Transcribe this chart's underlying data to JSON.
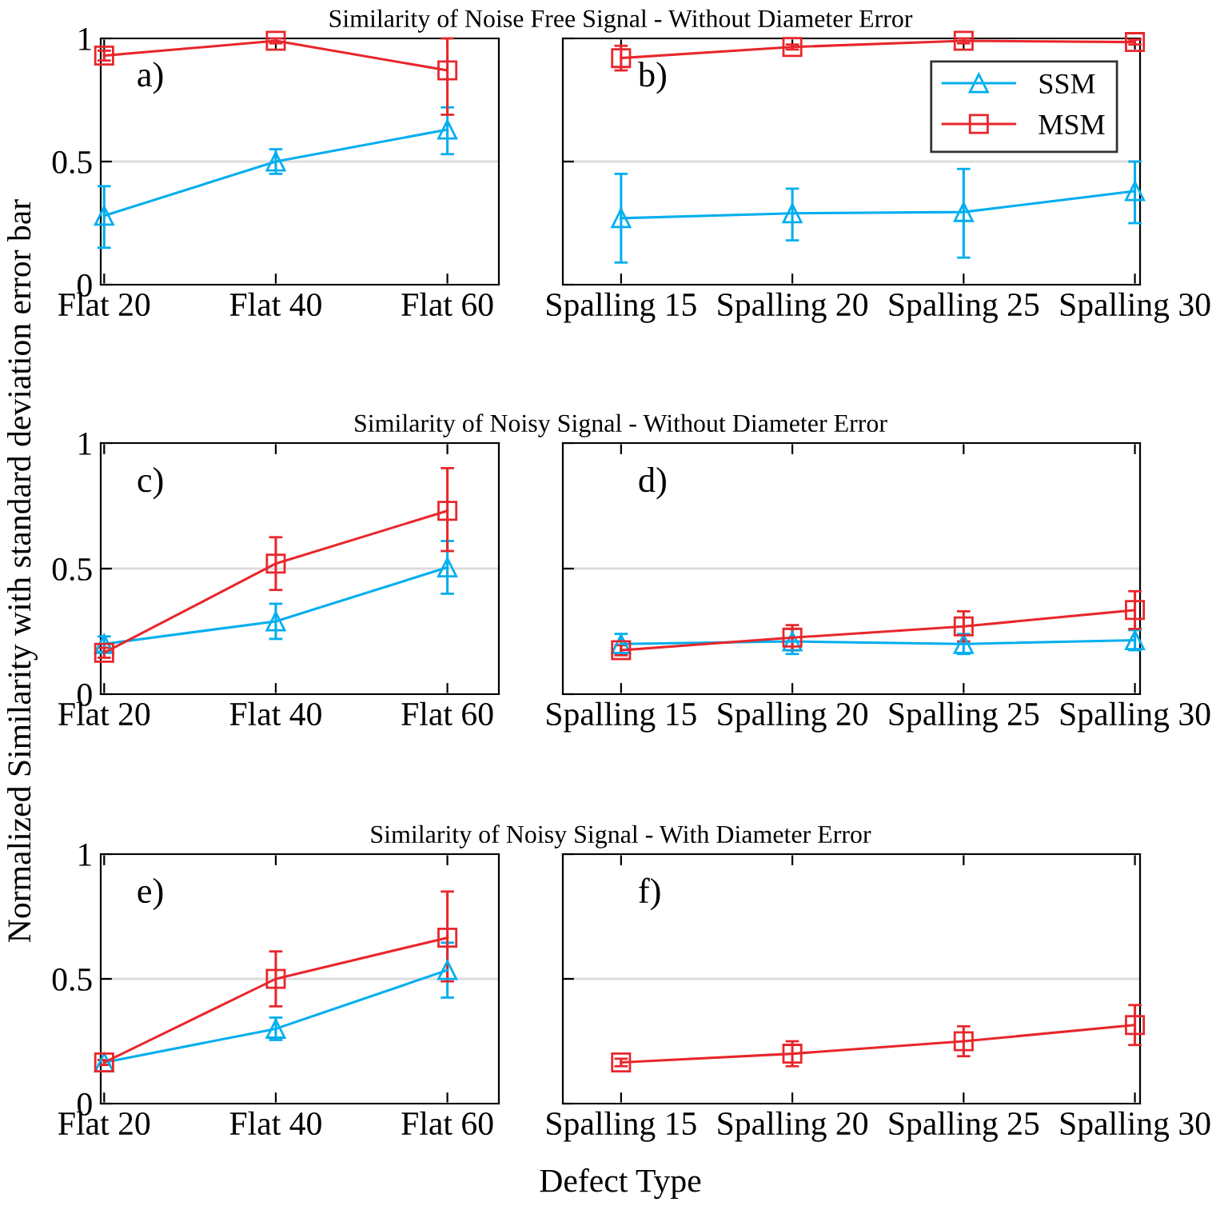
{
  "chart_data": [
    {
      "type": "line",
      "title": "Similarity of Noise Free Signal - Without Diameter Error",
      "annotations": [
        "a)"
      ],
      "categories": [
        "Flat 20",
        "Flat 40",
        "Flat 60"
      ],
      "ylim": [
        0,
        1
      ],
      "yticks": [
        0,
        0.5,
        1
      ],
      "grid": "y",
      "line_style": "solid",
      "series": [
        {
          "color": "#00aeef",
          "marker": "triangle",
          "values": [
            0.28,
            0.5,
            0.63
          ],
          "errors": [
            [
              0.15,
              0.4
            ],
            0.05,
            [
              0.53,
              0.72
            ]
          ]
        },
        {
          "color": "#e8262c",
          "marker": "square",
          "values": [
            0.93,
            0.99,
            0.87
          ],
          "errors": [
            0.02,
            0.01,
            [
              0.69,
              1.0
            ]
          ]
        }
      ]
    },
    {
      "type": "line",
      "annotations": [
        "b)"
      ],
      "categories": [
        "Spalling 15",
        "Spalling 20",
        "Spalling 25",
        "Spalling 30"
      ],
      "ylim": [
        0,
        1
      ],
      "yticks": [
        0,
        0.5,
        1
      ],
      "grid": "y",
      "tick_labels": "x",
      "legend": "top right",
      "line_style": "solid",
      "series": [
        {
          "name": "SSM",
          "color": "#00aeef",
          "marker": "triangle",
          "values": [
            0.27,
            0.29,
            0.295,
            0.38
          ],
          "errors": [
            [
              0.09,
              0.45
            ],
            [
              0.18,
              0.39
            ],
            [
              0.11,
              0.47
            ],
            [
              0.25,
              0.5
            ]
          ]
        },
        {
          "name": "MSM",
          "color": "#e8262c",
          "marker": "square",
          "values": [
            0.92,
            0.965,
            0.99,
            0.985
          ],
          "errors": [
            0.05,
            0.01,
            0.01,
            0.01
          ]
        }
      ]
    },
    {
      "type": "line",
      "title": "Similarity of Noisy Signal - Without Diameter Error",
      "ylabel": "Normalized Similarity with standard deviation error bar",
      "annotations": [
        "c)"
      ],
      "categories": [
        "Flat 20",
        "Flat 40",
        "Flat 60"
      ],
      "ylim": [
        0,
        1
      ],
      "yticks": [
        0,
        0.5,
        1
      ],
      "grid": "y",
      "line_style": "solid",
      "series": [
        {
          "color": "#00aeef",
          "marker": "triangle",
          "values": [
            0.2,
            0.29,
            0.505
          ],
          "errors": [
            0.03,
            0.07,
            0.105
          ]
        },
        {
          "color": "#e8262c",
          "marker": "square",
          "values": [
            0.165,
            0.52,
            0.73
          ],
          "errors": [
            0.02,
            0.105,
            [
              0.57,
              0.9
            ]
          ]
        }
      ]
    },
    {
      "type": "line",
      "annotations": [
        "d)"
      ],
      "categories": [
        "Spalling 15",
        "Spalling 20",
        "Spalling 25",
        "Spalling 30"
      ],
      "ylim": [
        0,
        1
      ],
      "yticks": [
        0,
        0.5,
        1
      ],
      "grid": "y",
      "tick_labels": "x",
      "line_style": "solid",
      "series": [
        {
          "color": "#00aeef",
          "marker": "triangle",
          "values": [
            0.2,
            0.21,
            0.2,
            0.215
          ],
          "errors": [
            0.04,
            0.05,
            0.04,
            0.04
          ]
        },
        {
          "color": "#e8262c",
          "marker": "square",
          "values": [
            0.175,
            0.225,
            0.27,
            0.335
          ],
          "errors": [
            0.02,
            0.05,
            0.06,
            0.075
          ]
        }
      ]
    },
    {
      "type": "line",
      "title": "Similarity of Noisy Signal - With Diameter Error",
      "annotations": [
        "e)"
      ],
      "categories": [
        "Flat 20",
        "Flat 40",
        "Flat 60"
      ],
      "ylim": [
        0,
        1
      ],
      "yticks": [
        0,
        0.5,
        1
      ],
      "grid": "y",
      "line_style": "solid",
      "series": [
        {
          "color": "#00aeef",
          "marker": "triangle",
          "values": [
            0.165,
            0.3,
            0.535
          ],
          "errors": [
            0.01,
            0.045,
            0.11
          ]
        },
        {
          "color": "#e8262c",
          "marker": "square",
          "values": [
            0.165,
            0.5,
            0.665
          ],
          "errors": [
            0.01,
            0.11,
            [
              0.49,
              0.85
            ]
          ]
        }
      ]
    },
    {
      "type": "line",
      "xlabel": "Defect Type",
      "annotations": [
        "f)"
      ],
      "categories": [
        "Spalling 15",
        "Spalling 20",
        "Spalling 25",
        "Spalling 30"
      ],
      "ylim": [
        0,
        1
      ],
      "yticks": [
        0,
        0.5,
        1
      ],
      "grid": "y",
      "tick_labels": "x",
      "line_style": "solid",
      "series": [
        {
          "color": "#e8262c",
          "marker": "square",
          "values": [
            0.165,
            0.2,
            0.25,
            0.315
          ],
          "errors": [
            0.015,
            0.05,
            0.06,
            0.08
          ]
        }
      ]
    }
  ]
}
